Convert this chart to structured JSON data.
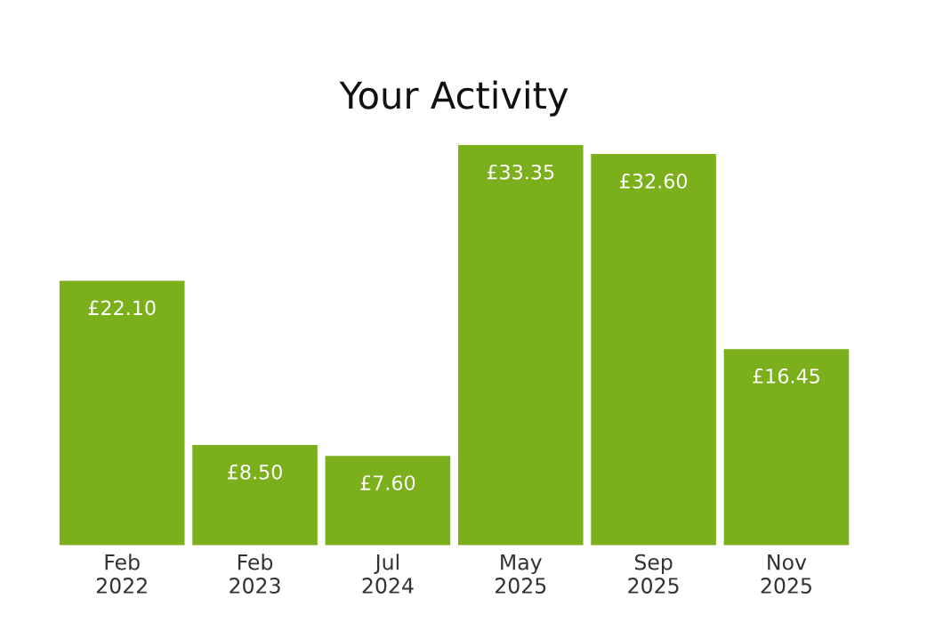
{
  "chart_data": {
    "type": "bar",
    "title": "Your Activity",
    "categories": [
      "Feb\n2022",
      "Feb\n2023",
      "Jul\n2024",
      "May\n2025",
      "Sep\n2025",
      "Nov\n2025"
    ],
    "values": [
      22.1,
      8.5,
      7.6,
      33.35,
      32.6,
      16.45
    ],
    "value_labels": [
      "£22.10",
      "£8.50",
      "£7.60",
      "£33.35",
      "£32.60",
      "£16.45"
    ],
    "color": "#7baf1b",
    "grid": false,
    "legend": false
  }
}
